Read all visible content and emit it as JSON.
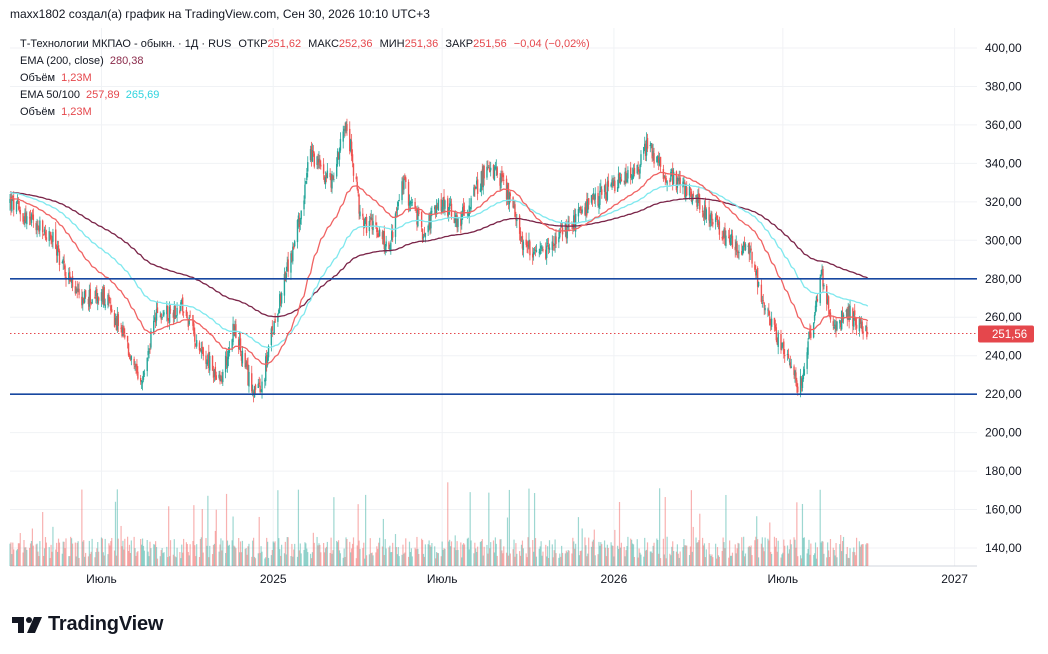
{
  "header": {
    "attribution": "maxx1802 создал(а) график на TradingView.com, Сен 30, 2026 10:10 UTC+3"
  },
  "legend": {
    "symbol": "Т-Технологии МКПАО - обыкн. · 1Д · RUS",
    "open_label": "ОТКР",
    "open_value": "251,62",
    "high_label": "МАКС",
    "high_value": "252,36",
    "low_label": "МИН",
    "low_value": "251,36",
    "close_label": "ЗАКР",
    "close_value": "251,56",
    "change": "−0,04 (−0,02%)",
    "ema200_label": "EMA (200, close)",
    "ema200_value": "280,38",
    "volume1_label": "Объём",
    "volume1_value": "1,23M",
    "ema50_100_label": "EMA 50/100",
    "ema50_value": "257,89",
    "ema100_value": "265,69",
    "volume2_label": "Объём",
    "volume2_value": "1,23M"
  },
  "colors": {
    "up": "#26a69a",
    "down": "#ef5350",
    "ema50": "#f06363",
    "ema100": "#7fe8ee",
    "ema200": "#7a2448",
    "level_line": "#1848a0",
    "last_price_tag": "#e5474c"
  },
  "branding": {
    "logo_icon": "tradingview-logo-icon",
    "name": "TradingView"
  },
  "chart_data": {
    "type": "candlestick",
    "y_axis": {
      "min": 130,
      "max": 405,
      "ticks": [
        140,
        160,
        180,
        200,
        220,
        240,
        260,
        280,
        300,
        320,
        340,
        360,
        380,
        400
      ],
      "tick_labels": [
        "140,00",
        "160,00",
        "180,00",
        "200,00",
        "220,00",
        "240,00",
        "260,00",
        "280,00",
        "300,00",
        "320,00",
        "340,00",
        "360,00",
        "380,00",
        "400,00"
      ]
    },
    "x_axis": {
      "start": "2024-03-25",
      "end": "2027-01-25",
      "ticks": [
        {
          "date": "2024-07-01",
          "label": "Июль"
        },
        {
          "date": "2025-01-01",
          "label": "2025"
        },
        {
          "date": "2025-07-01",
          "label": "Июль"
        },
        {
          "date": "2026-01-01",
          "label": "2026"
        },
        {
          "date": "2026-07-01",
          "label": "Июль"
        },
        {
          "date": "2027-01-01",
          "label": "2027"
        }
      ]
    },
    "last_date": "2026-09-30",
    "last_price": 251.56,
    "last_price_label": "251,56",
    "horizontal_levels": [
      280,
      220
    ],
    "price_anchors": [
      [
        "2024-03-25",
        320
      ],
      [
        "2024-04-15",
        310
      ],
      [
        "2024-05-10",
        300
      ],
      [
        "2024-06-05",
        270
      ],
      [
        "2024-07-05",
        270
      ],
      [
        "2024-07-25",
        250
      ],
      [
        "2024-08-12",
        222
      ],
      [
        "2024-08-28",
        260
      ],
      [
        "2024-09-25",
        265
      ],
      [
        "2024-10-15",
        245
      ],
      [
        "2024-11-05",
        225
      ],
      [
        "2024-11-20",
        255
      ],
      [
        "2024-12-05",
        228
      ],
      [
        "2024-12-18",
        220
      ],
      [
        "2025-01-05",
        265
      ],
      [
        "2025-01-25",
        300
      ],
      [
        "2025-02-10",
        345
      ],
      [
        "2025-03-05",
        330
      ],
      [
        "2025-03-20",
        365
      ],
      [
        "2025-04-05",
        310
      ],
      [
        "2025-04-25",
        305
      ],
      [
        "2025-05-05",
        295
      ],
      [
        "2025-05-20",
        330
      ],
      [
        "2025-06-10",
        305
      ],
      [
        "2025-07-01",
        320
      ],
      [
        "2025-07-20",
        310
      ],
      [
        "2025-08-05",
        325
      ],
      [
        "2025-08-20",
        340
      ],
      [
        "2025-09-05",
        330
      ],
      [
        "2025-09-25",
        300
      ],
      [
        "2025-10-10",
        290
      ],
      [
        "2025-11-01",
        300
      ],
      [
        "2025-11-20",
        310
      ],
      [
        "2025-12-10",
        320
      ],
      [
        "2026-01-05",
        330
      ],
      [
        "2026-01-25",
        335
      ],
      [
        "2026-02-05",
        350
      ],
      [
        "2026-02-25",
        335
      ],
      [
        "2026-03-20",
        325
      ],
      [
        "2026-04-10",
        315
      ],
      [
        "2026-05-01",
        300
      ],
      [
        "2026-05-25",
        295
      ],
      [
        "2026-06-15",
        260
      ],
      [
        "2026-07-05",
        240
      ],
      [
        "2026-07-18",
        222
      ],
      [
        "2026-08-01",
        255
      ],
      [
        "2026-08-12",
        282
      ],
      [
        "2026-08-25",
        255
      ],
      [
        "2026-09-10",
        262
      ],
      [
        "2026-09-30",
        251.56
      ]
    ],
    "ema_latest": {
      "ema50": 257.89,
      "ema100": 265.69,
      "ema200": 280.38
    },
    "volume": {
      "max_value": 6.0,
      "unit": "M",
      "last_value": 1.23
    }
  }
}
